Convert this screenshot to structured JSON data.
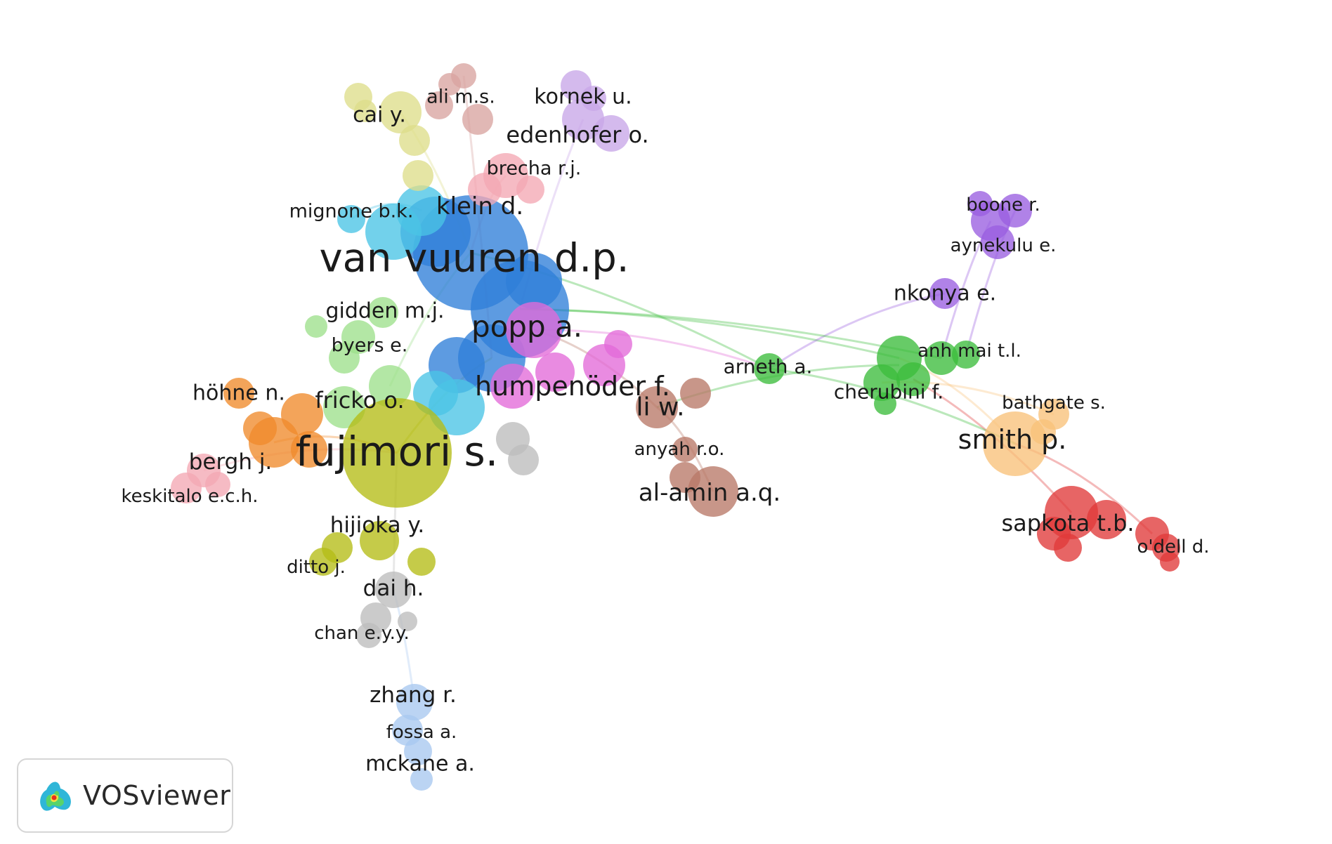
{
  "app": {
    "logo_text": "VOSviewer"
  },
  "clusters": {
    "blue": {
      "color": "#2f7fd8"
    },
    "olive": {
      "color": "#b5bd16"
    },
    "orange": {
      "color": "#f08a2c"
    },
    "pink": {
      "color": "#f4a8b4"
    },
    "magenta": {
      "color": "#e36ad8"
    },
    "brown": {
      "color": "#b87868"
    },
    "lilac": {
      "color": "#c8a6e8"
    },
    "cyan": {
      "color": "#4ac4e6"
    },
    "lightgreen": {
      "color": "#9ee08c"
    },
    "green": {
      "color": "#3cbc3c"
    },
    "purple": {
      "color": "#9a5fe0"
    },
    "peach": {
      "color": "#f8c27a"
    },
    "red": {
      "color": "#e03a3a"
    },
    "grey": {
      "color": "#bdbdbd"
    },
    "rose": {
      "color": "#d8a4a0"
    },
    "khaki": {
      "color": "#dede8a"
    },
    "lightblue": {
      "color": "#a8c8f0"
    }
  },
  "labels": [
    "van vuuren d.p.",
    "fujimori s.",
    "popp a.",
    "humpenöder f.",
    "klein d.",
    "edenhofer o.",
    "kornek u.",
    "brecha r.j.",
    "ali m.s.",
    "cai y.",
    "mignone b.k.",
    "gidden m.j.",
    "byers e.",
    "fricko o.",
    "höhne n.",
    "bergh j.",
    "keskitalo e.c.h.",
    "hijioka y.",
    "ditto j.",
    "dai h.",
    "chan e.y.y.",
    "zhang r.",
    "fossa a.",
    "mckane a.",
    "li w.",
    "anyah r.o.",
    "al-amin a.q.",
    "arneth a.",
    "cherubini f.",
    "anh mai t.l.",
    "nkonya e.",
    "aynekulu e.",
    "boone r.",
    "smith p.",
    "bathgate s.",
    "sapkota t.b.",
    "o'dell d."
  ]
}
